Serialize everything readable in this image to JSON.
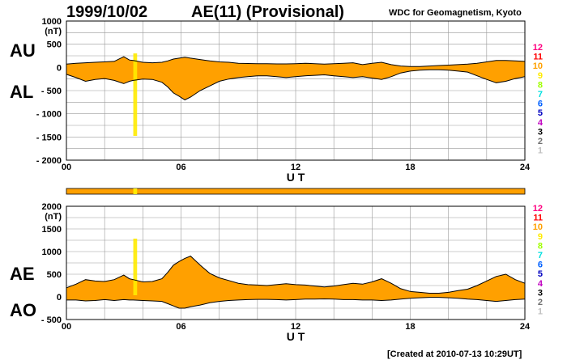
{
  "header": {
    "date": "1999/10/02",
    "title": "AE(11) (Provisional)",
    "org": "WDC for Geomagnetism, Kyoto"
  },
  "footer": "[Created at 2010-07-13 10:29UT]",
  "colors": {
    "fill": "#ffa000",
    "highlight": "#ffeb00",
    "line": "#000000",
    "grid": "#999999"
  },
  "color_scale": [
    {
      "label": "12",
      "color": "#ff0080"
    },
    {
      "label": "11",
      "color": "#ff0000"
    },
    {
      "label": "10",
      "color": "#ffa000"
    },
    {
      "label": "9",
      "color": "#ffeb00"
    },
    {
      "label": "8",
      "color": "#a0ff00"
    },
    {
      "label": "7",
      "color": "#00e0e0"
    },
    {
      "label": "6",
      "color": "#0060ff"
    },
    {
      "label": "5",
      "color": "#0000c0"
    },
    {
      "label": "4",
      "color": "#c000c0"
    },
    {
      "label": "3",
      "color": "#000000"
    },
    {
      "label": "2",
      "color": "#707070"
    },
    {
      "label": "1",
      "color": "#c0c0c0"
    }
  ],
  "chart_data": [
    {
      "type": "area",
      "side_top": "AU",
      "side_bottom": "AL",
      "unit": "(nT)",
      "xlabel": "U T",
      "xlim": [
        0,
        24
      ],
      "xticks": [
        "00",
        "06",
        "12",
        "18",
        "24"
      ],
      "ylim": [
        -2000,
        1000
      ],
      "yticks": [
        "1000",
        "500",
        "0",
        "- 500",
        "- 1000",
        "- 1500",
        "- 2000"
      ],
      "ytick_values": [
        1000,
        500,
        0,
        -500,
        -1000,
        -1500,
        -2000
      ],
      "x": [
        0,
        0.5,
        1,
        1.5,
        2,
        2.5,
        3,
        3.3,
        3.5,
        4,
        4.5,
        5,
        5.3,
        5.6,
        5.9,
        6.2,
        6.5,
        7,
        7.5,
        8,
        8.5,
        9,
        9.5,
        10,
        10.5,
        11,
        11.5,
        12,
        12.5,
        13,
        13.5,
        14,
        14.5,
        15,
        15.5,
        16,
        16.5,
        17,
        17.5,
        18,
        18.5,
        19,
        19.5,
        20,
        20.5,
        21,
        21.5,
        22,
        22.5,
        23,
        23.5,
        24
      ],
      "series": [
        {
          "values": [
            70,
            90,
            100,
            110,
            120,
            130,
            230,
            160,
            150,
            110,
            100,
            110,
            140,
            180,
            200,
            220,
            200,
            170,
            140,
            120,
            110,
            90,
            85,
            80,
            80,
            75,
            75,
            80,
            90,
            80,
            70,
            80,
            90,
            100,
            60,
            90,
            110,
            60,
            30,
            20,
            20,
            30,
            40,
            50,
            60,
            70,
            90,
            120,
            150,
            150,
            140,
            130
          ]
        },
        {
          "values": [
            -150,
            -220,
            -300,
            -260,
            -240,
            -280,
            -350,
            -300,
            -280,
            -250,
            -260,
            -320,
            -420,
            -550,
            -620,
            -700,
            -640,
            -500,
            -400,
            -300,
            -250,
            -220,
            -200,
            -180,
            -180,
            -200,
            -220,
            -200,
            -180,
            -170,
            -160,
            -180,
            -200,
            -220,
            -200,
            -230,
            -260,
            -200,
            -120,
            -80,
            -60,
            -50,
            -50,
            -60,
            -80,
            -100,
            -180,
            -260,
            -330,
            -300,
            -240,
            -200
          ]
        }
      ],
      "highlight_x": [
        3.5,
        3.7
      ]
    },
    {
      "type": "area",
      "side_top": "AE",
      "side_bottom": "AO",
      "unit": "(nT)",
      "xlabel": "U T",
      "xlim": [
        0,
        24
      ],
      "xticks": [
        "00",
        "06",
        "12",
        "18",
        "24"
      ],
      "ylim": [
        -500,
        2000
      ],
      "yticks": [
        "2000",
        "1500",
        "1000",
        "500",
        "0",
        "- 500"
      ],
      "ytick_values": [
        2000,
        1500,
        1000,
        500,
        0,
        -500
      ],
      "x": [
        0,
        0.5,
        1,
        1.5,
        2,
        2.5,
        3,
        3.3,
        3.5,
        4,
        4.5,
        5,
        5.3,
        5.6,
        5.9,
        6.2,
        6.5,
        7,
        7.5,
        8,
        8.5,
        9,
        9.5,
        10,
        10.5,
        11,
        11.5,
        12,
        12.5,
        13,
        13.5,
        14,
        14.5,
        15,
        15.5,
        16,
        16.5,
        17,
        17.5,
        18,
        18.5,
        19,
        19.5,
        20,
        20.5,
        21,
        21.5,
        22,
        22.5,
        23,
        23.5,
        24
      ],
      "series": [
        {
          "values": [
            200,
            280,
            380,
            350,
            340,
            380,
            480,
            400,
            380,
            330,
            340,
            400,
            540,
            700,
            780,
            850,
            900,
            700,
            520,
            420,
            360,
            300,
            270,
            260,
            250,
            270,
            290,
            270,
            260,
            240,
            220,
            240,
            270,
            300,
            280,
            330,
            400,
            300,
            180,
            120,
            100,
            80,
            80,
            100,
            140,
            170,
            250,
            350,
            450,
            500,
            380,
            300
          ]
        },
        {
          "values": [
            -70,
            -70,
            -90,
            -80,
            -60,
            -80,
            -60,
            -70,
            -70,
            -80,
            -90,
            -100,
            -150,
            -200,
            -250,
            -250,
            -220,
            -180,
            -130,
            -100,
            -80,
            -70,
            -60,
            -55,
            -55,
            -60,
            -70,
            -60,
            -50,
            -50,
            -45,
            -50,
            -60,
            -60,
            -70,
            -70,
            -80,
            -70,
            -50,
            -30,
            -20,
            -10,
            -10,
            -20,
            -30,
            -50,
            -60,
            -80,
            -100,
            -80,
            -60,
            -50
          ]
        }
      ],
      "highlight_x": [
        3.5,
        3.7
      ]
    }
  ]
}
